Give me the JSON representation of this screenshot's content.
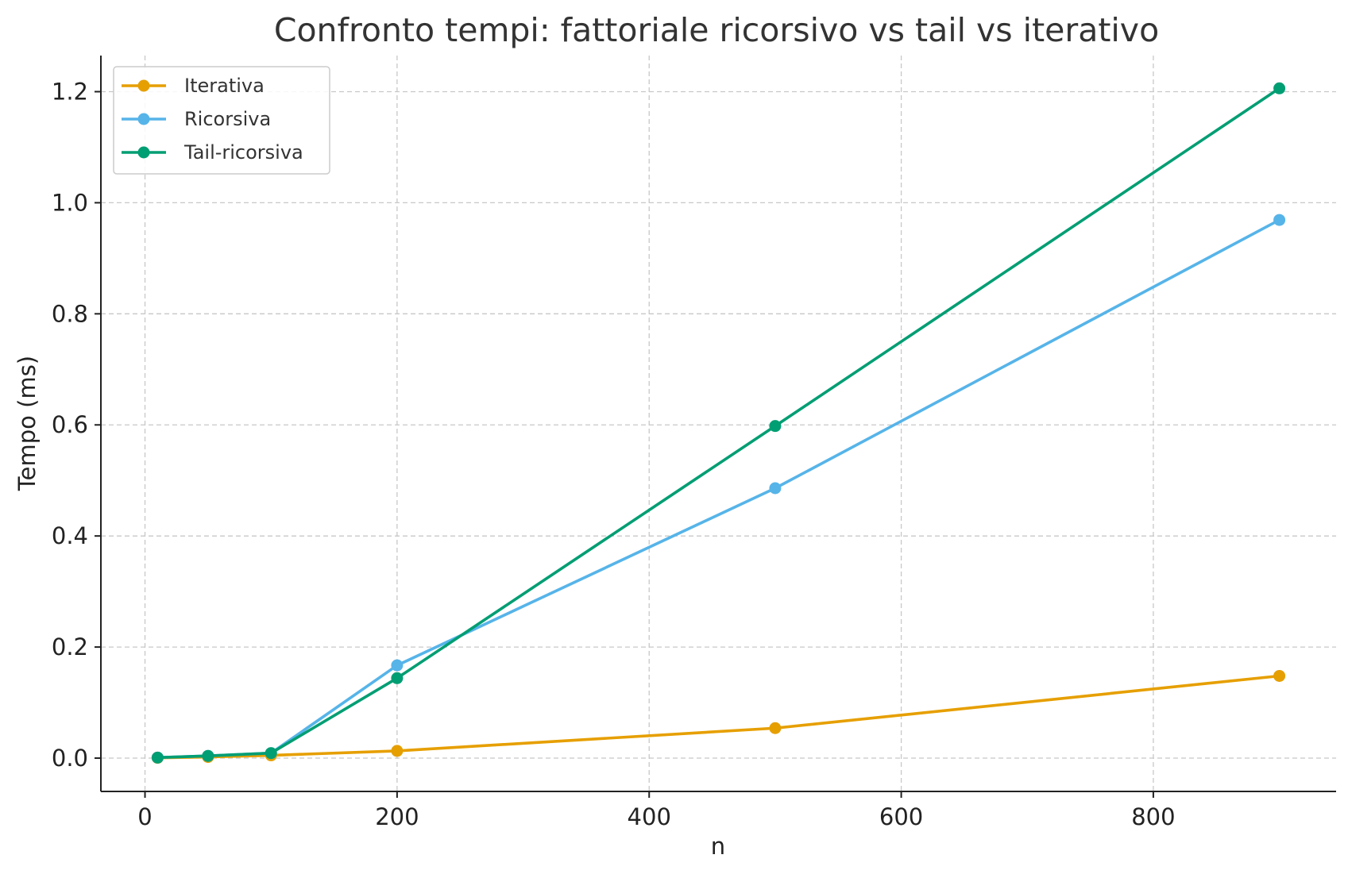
{
  "chart_data": {
    "type": "line",
    "title": "Confronto tempi: fattoriale ricorsivo vs tail vs iterativo",
    "xlabel": "n",
    "ylabel": "Tempo (ms)",
    "xlim": [
      -35,
      945
    ],
    "ylim": [
      -0.06,
      1.265
    ],
    "xticks": [
      0,
      200,
      400,
      600,
      800
    ],
    "xtick_labels": [
      "0",
      "200",
      "400",
      "600",
      "800"
    ],
    "yticks": [
      0.0,
      0.2,
      0.4,
      0.6,
      0.8,
      1.0,
      1.2
    ],
    "ytick_labels": [
      "0.0",
      "0.2",
      "0.4",
      "0.6",
      "0.8",
      "1.0",
      "1.2"
    ],
    "grid": true,
    "legend_position": "top-left",
    "x": [
      10,
      50,
      100,
      200,
      500,
      900
    ],
    "series": [
      {
        "name": "Iterativa",
        "color": "#E69F00",
        "values": [
          0.0005,
          0.002,
          0.005,
          0.013,
          0.054,
          0.148
        ]
      },
      {
        "name": "Ricorsiva",
        "color": "#56B4E9",
        "values": [
          0.001,
          0.004,
          0.009,
          0.167,
          0.486,
          0.969
        ]
      },
      {
        "name": "Tail-ricorsiva",
        "color": "#009E73",
        "values": [
          0.001,
          0.004,
          0.009,
          0.144,
          0.598,
          1.206
        ]
      }
    ]
  }
}
